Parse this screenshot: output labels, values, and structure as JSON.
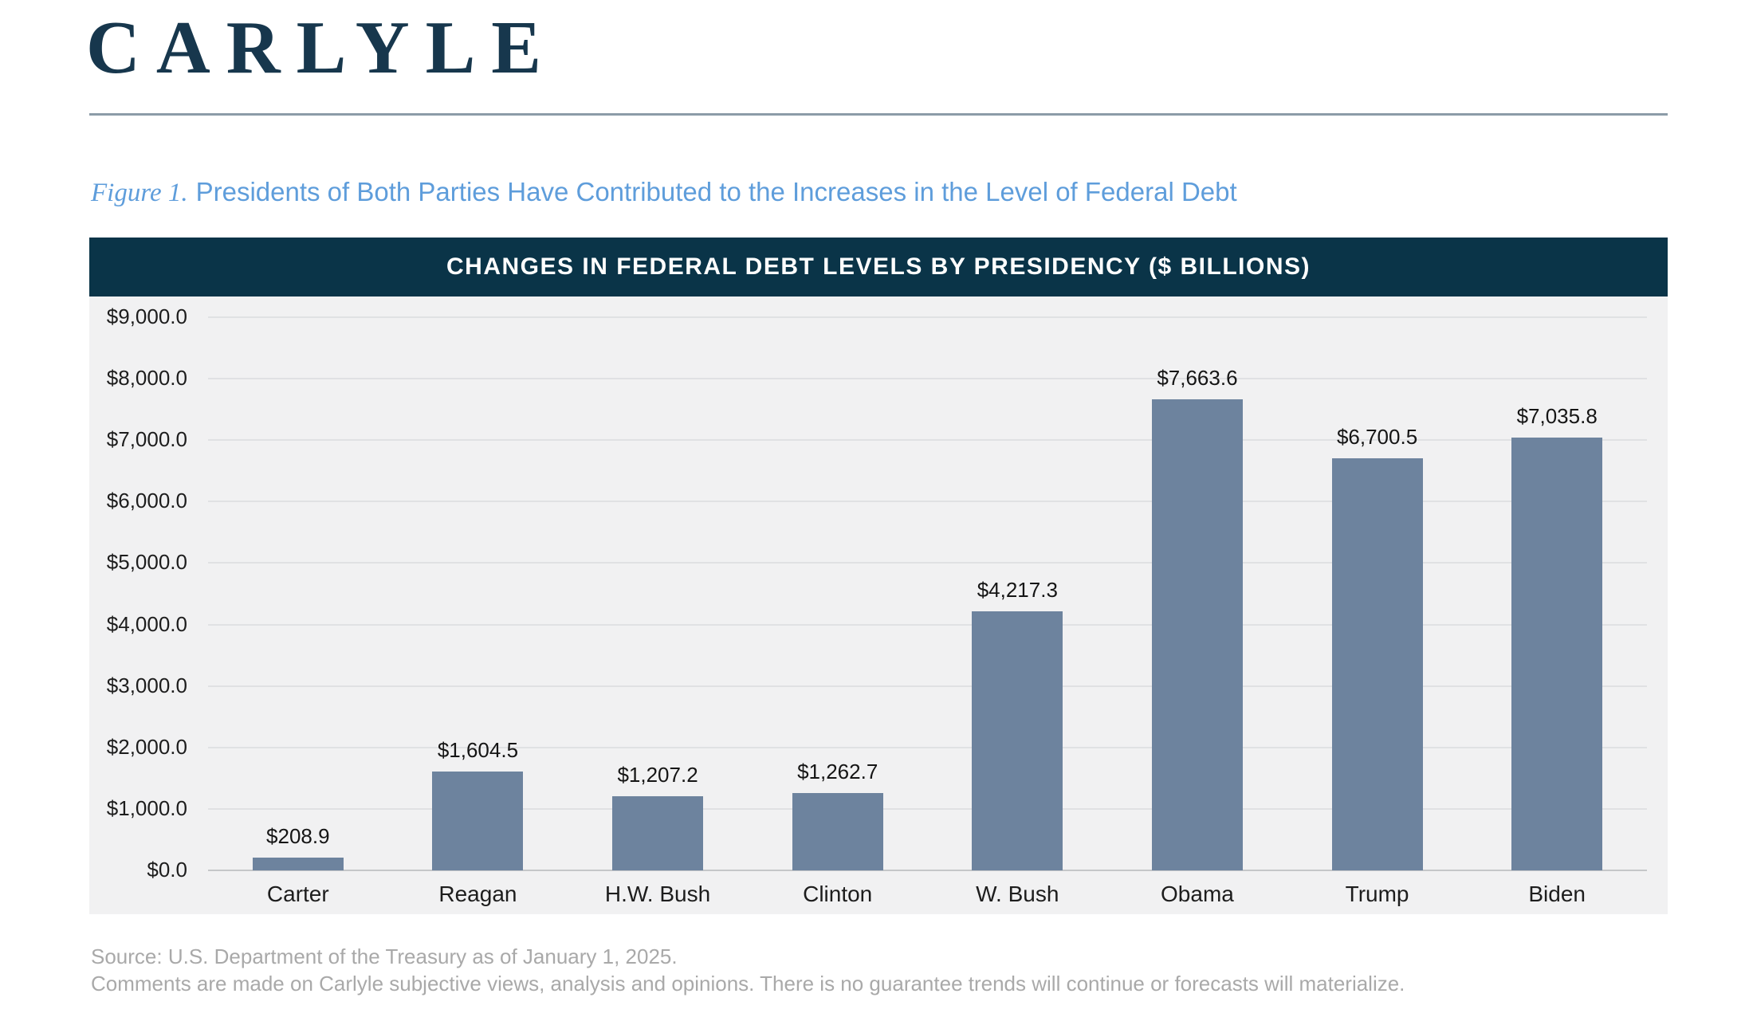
{
  "logo": "CARLYLE",
  "figure": {
    "label": "Figure 1.",
    "caption": "Presidents of Both Parties Have Contributed to the Increases in the Level of Federal Debt"
  },
  "chart_data": {
    "type": "bar",
    "title": "CHANGES IN FEDERAL DEBT LEVELS BY PRESIDENCY ($ BILLIONS)",
    "categories": [
      "Carter",
      "Reagan",
      "H.W. Bush",
      "Clinton",
      "W. Bush",
      "Obama",
      "Trump",
      "Biden"
    ],
    "values": [
      208.9,
      1604.5,
      1207.2,
      1262.7,
      4217.3,
      7663.6,
      6700.5,
      7035.8
    ],
    "value_labels": [
      "$208.9",
      "$1,604.5",
      "$1,207.2",
      "$1,262.7",
      "$4,217.3",
      "$7,663.6",
      "$6,700.5",
      "$7,035.8"
    ],
    "xlabel": "",
    "ylabel": "",
    "ylim": [
      0,
      9000
    ],
    "y_ticks": [
      {
        "value": 0,
        "label": "$0.0"
      },
      {
        "value": 1000,
        "label": "$1,000.0"
      },
      {
        "value": 2000,
        "label": "$2,000.0"
      },
      {
        "value": 3000,
        "label": "$3,000.0"
      },
      {
        "value": 4000,
        "label": "$4,000.0"
      },
      {
        "value": 5000,
        "label": "$5,000.0"
      },
      {
        "value": 6000,
        "label": "$6,000.0"
      },
      {
        "value": 7000,
        "label": "$7,000.0"
      },
      {
        "value": 8000,
        "label": "$8,000.0"
      },
      {
        "value": 9000,
        "label": "$9,000.0"
      }
    ],
    "grid": true,
    "legend_position": "none",
    "bar_color": "#6D839E",
    "plot_background": "#F1F1F2",
    "header_background": "#0A3448"
  },
  "source": {
    "line1": "Source: U.S. Department of the Treasury as of January 1, 2025.",
    "line2": "Comments are made on Carlyle subjective views, analysis and opinions. There is no guarantee trends will continue or forecasts will materialize."
  },
  "colors": {
    "logo_navy": "#17374D",
    "figure_caption_blue": "#5E9DDB",
    "divider_gray_blue": "#8C9CA8",
    "gridline": "#E0E1E3",
    "axis_line": "#C5C7C9",
    "source_gray": "#A9A9A9"
  }
}
